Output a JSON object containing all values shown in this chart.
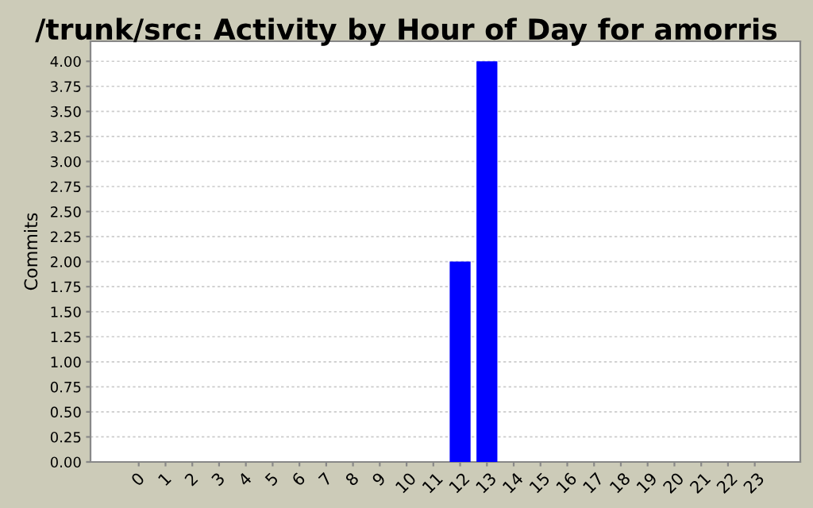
{
  "chart_data": {
    "type": "bar",
    "title": "/trunk/src: Activity by Hour of Day for amorris",
    "ylabel": "Commits",
    "categories": [
      "0",
      "1",
      "2",
      "3",
      "4",
      "5",
      "6",
      "7",
      "8",
      "9",
      "10",
      "11",
      "12",
      "13",
      "14",
      "15",
      "16",
      "17",
      "18",
      "19",
      "20",
      "21",
      "22",
      "23"
    ],
    "values": [
      0,
      0,
      0,
      0,
      0,
      0,
      0,
      0,
      0,
      0,
      0,
      0,
      2,
      4,
      0,
      0,
      0,
      0,
      0,
      0,
      0,
      0,
      0,
      0
    ],
    "color": "#0000ff",
    "ylim": [
      0,
      4.2
    ],
    "yticks": [
      {
        "value": 0,
        "label": "0.00"
      },
      {
        "value": 0.25,
        "label": "0.25"
      },
      {
        "value": 0.5,
        "label": "0.50"
      },
      {
        "value": 0.75,
        "label": "0.75"
      },
      {
        "value": 1,
        "label": "1.00"
      },
      {
        "value": 1.25,
        "label": "1.25"
      },
      {
        "value": 1.5,
        "label": "1.50"
      },
      {
        "value": 1.75,
        "label": "1.75"
      },
      {
        "value": 2,
        "label": "2.00"
      },
      {
        "value": 2.25,
        "label": "2.25"
      },
      {
        "value": 2.5,
        "label": "2.50"
      },
      {
        "value": 2.75,
        "label": "2.75"
      },
      {
        "value": 3,
        "label": "3.00"
      },
      {
        "value": 3.25,
        "label": "3.25"
      },
      {
        "value": 3.5,
        "label": "3.50"
      },
      {
        "value": 3.75,
        "label": "3.75"
      },
      {
        "value": 4,
        "label": "4.00"
      }
    ],
    "grid": "y"
  }
}
